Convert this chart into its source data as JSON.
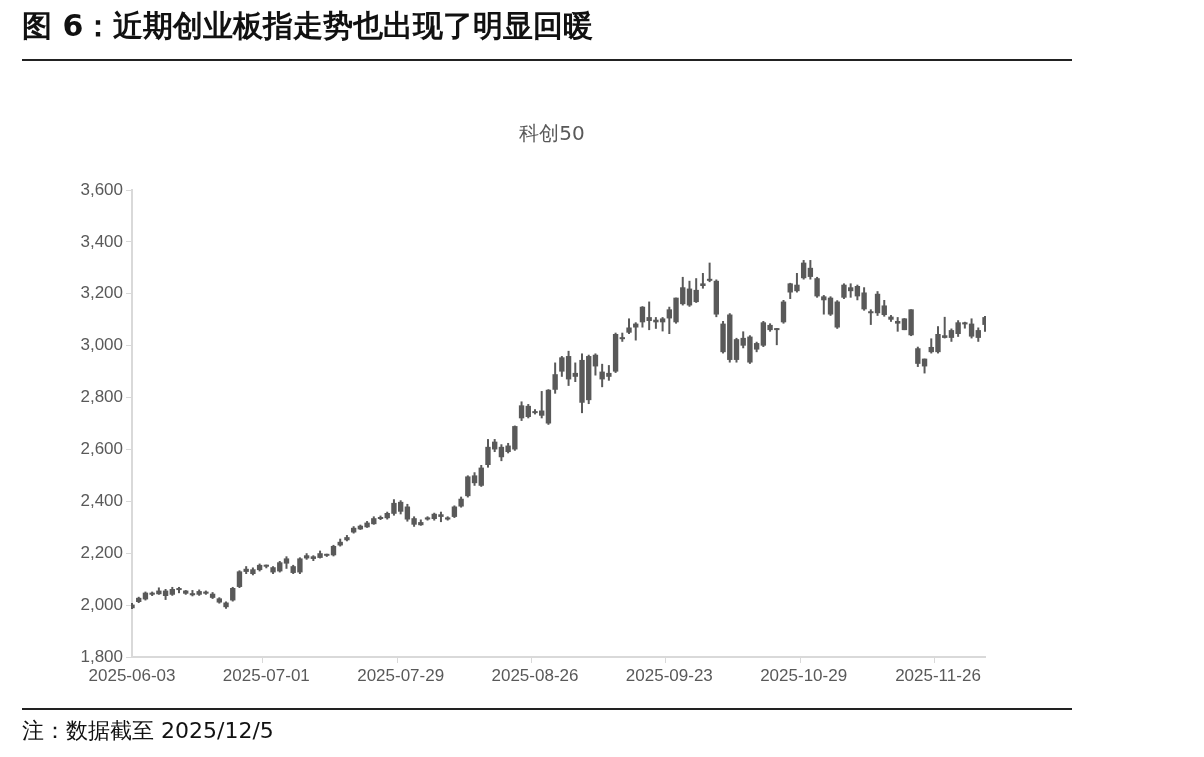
{
  "chart_data": {
    "type": "candlestick",
    "title": "图 6：近期创业板指走势也出现了明显回暖",
    "subtitle": "科创50",
    "annotations": [
      "注：数据截至 2025/12/5"
    ],
    "categories": [
      "2025-06-03",
      null,
      null,
      null,
      null,
      null,
      null,
      null,
      null,
      null,
      null,
      null,
      null,
      null,
      null,
      null,
      null,
      null,
      null,
      null,
      "2025-07-01",
      null,
      null,
      null,
      null,
      null,
      null,
      null,
      null,
      null,
      null,
      null,
      null,
      null,
      null,
      null,
      null,
      null,
      null,
      null,
      "2025-07-29",
      null,
      null,
      null,
      null,
      null,
      null,
      null,
      null,
      null,
      null,
      null,
      null,
      null,
      null,
      null,
      null,
      null,
      null,
      null,
      "2025-08-26",
      null,
      null,
      null,
      null,
      null,
      null,
      null,
      null,
      null,
      null,
      null,
      null,
      null,
      null,
      null,
      null,
      null,
      null,
      null,
      "2025-09-23",
      null,
      null,
      null,
      null,
      null,
      null,
      null,
      null,
      null,
      null,
      null,
      null,
      null,
      null,
      null,
      null,
      null,
      null,
      null,
      "2025-10-29",
      null,
      null,
      null,
      null,
      null,
      null,
      null,
      null,
      null,
      null,
      null,
      null,
      null,
      null,
      null,
      null,
      null,
      null,
      null,
      "2025-11-26",
      null,
      null,
      null,
      null,
      null,
      null,
      null
    ],
    "ohlc": [
      [
        1988,
        2008,
        1985,
        2002
      ],
      [
        2012,
        2032,
        2008,
        2028
      ],
      [
        2022,
        2052,
        2018,
        2048
      ],
      [
        2040,
        2052,
        2035,
        2048
      ],
      [
        2042,
        2068,
        2040,
        2056
      ],
      [
        2035,
        2062,
        2020,
        2056
      ],
      [
        2040,
        2070,
        2036,
        2062
      ],
      [
        2058,
        2070,
        2046,
        2062
      ],
      [
        2044,
        2058,
        2040,
        2056
      ],
      [
        2038,
        2058,
        2034,
        2046
      ],
      [
        2040,
        2060,
        2036,
        2054
      ],
      [
        2044,
        2056,
        2040,
        2052
      ],
      [
        2028,
        2050,
        2024,
        2044
      ],
      [
        2010,
        2030,
        2006,
        2026
      ],
      [
        1992,
        2014,
        1986,
        2010
      ],
      [
        2018,
        2070,
        2014,
        2066
      ],
      [
        2070,
        2134,
        2066,
        2130
      ],
      [
        2128,
        2150,
        2120,
        2140
      ],
      [
        2120,
        2145,
        2115,
        2138
      ],
      [
        2135,
        2160,
        2130,
        2155
      ],
      [
        2148,
        2156,
        2142,
        2150
      ],
      [
        2126,
        2150,
        2120,
        2146
      ],
      [
        2130,
        2170,
        2126,
        2165
      ],
      [
        2160,
        2188,
        2140,
        2180
      ],
      [
        2124,
        2155,
        2120,
        2150
      ],
      [
        2126,
        2184,
        2120,
        2180
      ],
      [
        2180,
        2200,
        2175,
        2192
      ],
      [
        2178,
        2192,
        2170,
        2188
      ],
      [
        2182,
        2210,
        2180,
        2200
      ],
      [
        2190,
        2198,
        2186,
        2194
      ],
      [
        2192,
        2232,
        2188,
        2228
      ],
      [
        2230,
        2256,
        2226,
        2244
      ],
      [
        2250,
        2270,
        2246,
        2262
      ],
      [
        2280,
        2304,
        2276,
        2298
      ],
      [
        2292,
        2310,
        2290,
        2306
      ],
      [
        2300,
        2324,
        2298,
        2318
      ],
      [
        2312,
        2342,
        2310,
        2335
      ],
      [
        2332,
        2345,
        2328,
        2338
      ],
      [
        2335,
        2360,
        2330,
        2355
      ],
      [
        2352,
        2408,
        2345,
        2394
      ],
      [
        2360,
        2404,
        2350,
        2398
      ],
      [
        2330,
        2390,
        2322,
        2380
      ],
      [
        2310,
        2342,
        2302,
        2335
      ],
      [
        2308,
        2330,
        2306,
        2320
      ],
      [
        2330,
        2342,
        2326,
        2338
      ],
      [
        2332,
        2356,
        2326,
        2352
      ],
      [
        2340,
        2360,
        2320,
        2350
      ],
      [
        2330,
        2342,
        2326,
        2338
      ],
      [
        2340,
        2384,
        2336,
        2380
      ],
      [
        2380,
        2418,
        2376,
        2410
      ],
      [
        2420,
        2500,
        2415,
        2496
      ],
      [
        2470,
        2512,
        2460,
        2500
      ],
      [
        2460,
        2540,
        2456,
        2530
      ],
      [
        2540,
        2640,
        2530,
        2610
      ],
      [
        2600,
        2640,
        2590,
        2630
      ],
      [
        2570,
        2620,
        2555,
        2610
      ],
      [
        2590,
        2625,
        2585,
        2615
      ],
      [
        2600,
        2692,
        2595,
        2690
      ],
      [
        2720,
        2785,
        2710,
        2770
      ],
      [
        2725,
        2775,
        2720,
        2768
      ],
      [
        2740,
        2755,
        2735,
        2745
      ],
      [
        2730,
        2825,
        2720,
        2750
      ],
      [
        2700,
        2832,
        2695,
        2830
      ],
      [
        2830,
        2935,
        2815,
        2890
      ],
      [
        2900,
        2960,
        2880,
        2955
      ],
      [
        2870,
        2980,
        2845,
        2960
      ],
      [
        2880,
        2935,
        2860,
        2895
      ],
      [
        2780,
        2970,
        2740,
        2945
      ],
      [
        2790,
        2965,
        2775,
        2960
      ],
      [
        2920,
        2970,
        2885,
        2965
      ],
      [
        2870,
        2930,
        2840,
        2900
      ],
      [
        2880,
        2925,
        2865,
        2895
      ],
      [
        2900,
        3050,
        2895,
        3045
      ],
      [
        3025,
        3050,
        3015,
        3030
      ],
      [
        3050,
        3105,
        3045,
        3070
      ],
      [
        3070,
        3090,
        3020,
        3085
      ],
      [
        3090,
        3152,
        3070,
        3150
      ],
      [
        3095,
        3170,
        3060,
        3110
      ],
      [
        3090,
        3110,
        3065,
        3100
      ],
      [
        3090,
        3110,
        3055,
        3105
      ],
      [
        3105,
        3150,
        3045,
        3140
      ],
      [
        3090,
        3185,
        3085,
        3185
      ],
      [
        3160,
        3265,
        3155,
        3225
      ],
      [
        3155,
        3250,
        3150,
        3220
      ],
      [
        3168,
        3260,
        3165,
        3215
      ],
      [
        3230,
        3280,
        3220,
        3240
      ],
      [
        3250,
        3320,
        3245,
        3255
      ],
      [
        3120,
        3255,
        3110,
        3250
      ],
      [
        2975,
        3095,
        2970,
        3085
      ],
      [
        2945,
        3125,
        2935,
        3120
      ],
      [
        2945,
        3030,
        2935,
        3025
      ],
      [
        3000,
        3055,
        2990,
        3030
      ],
      [
        2935,
        3040,
        2930,
        3035
      ],
      [
        2985,
        3015,
        2975,
        3010
      ],
      [
        3000,
        3095,
        2995,
        3090
      ],
      [
        3060,
        3086,
        3054,
        3080
      ],
      [
        3060,
        3068,
        3002,
        3066
      ],
      [
        3090,
        3176,
        3085,
        3170
      ],
      [
        3205,
        3242,
        3180,
        3240
      ],
      [
        3210,
        3280,
        3205,
        3235
      ],
      [
        3260,
        3330,
        3255,
        3320
      ],
      [
        3265,
        3330,
        3255,
        3300
      ],
      [
        3190,
        3265,
        3185,
        3260
      ],
      [
        3175,
        3195,
        3120,
        3190
      ],
      [
        3120,
        3190,
        3115,
        3185
      ],
      [
        3070,
        3175,
        3065,
        3170
      ],
      [
        3185,
        3240,
        3180,
        3235
      ],
      [
        3210,
        3240,
        3185,
        3225
      ],
      [
        3190,
        3235,
        3175,
        3230
      ],
      [
        3140,
        3225,
        3135,
        3205
      ],
      [
        3125,
        3140,
        3080,
        3130
      ],
      [
        3125,
        3210,
        3115,
        3200
      ],
      [
        3118,
        3176,
        3112,
        3155
      ],
      [
        3100,
        3118,
        3092,
        3112
      ],
      [
        3085,
        3110,
        3054,
        3095
      ],
      [
        3060,
        3106,
        3060,
        3105
      ],
      [
        3040,
        3140,
        3037,
        3140
      ],
      [
        2930,
        2996,
        2918,
        2990
      ],
      [
        2920,
        2950,
        2893,
        2950
      ],
      [
        2975,
        3028,
        2970,
        2995
      ],
      [
        2975,
        3075,
        2970,
        3045
      ],
      [
        3030,
        3111,
        3028,
        3040
      ],
      [
        3030,
        3066,
        3015,
        3060
      ],
      [
        3045,
        3098,
        3034,
        3090
      ],
      [
        3082,
        3092,
        3066,
        3090
      ],
      [
        3035,
        3105,
        3028,
        3085
      ],
      [
        3030,
        3070,
        3015,
        3060
      ],
      [
        3080,
        3114,
        3054,
        3110
      ]
    ],
    "color": "#595959",
    "ylim": [
      1800,
      3600
    ],
    "yticks": [
      {
        "value": 1800,
        "label": "1,800"
      },
      {
        "value": 2000,
        "label": "2,000"
      },
      {
        "value": 2200,
        "label": "2,200"
      },
      {
        "value": 2400,
        "label": "2,400"
      },
      {
        "value": 2600,
        "label": "2,600"
      },
      {
        "value": 2800,
        "label": "2,800"
      },
      {
        "value": 3000,
        "label": "3,000"
      },
      {
        "value": 3200,
        "label": "3,200"
      },
      {
        "value": 3400,
        "label": "3,400"
      },
      {
        "value": 3600,
        "label": "3,600"
      }
    ]
  }
}
